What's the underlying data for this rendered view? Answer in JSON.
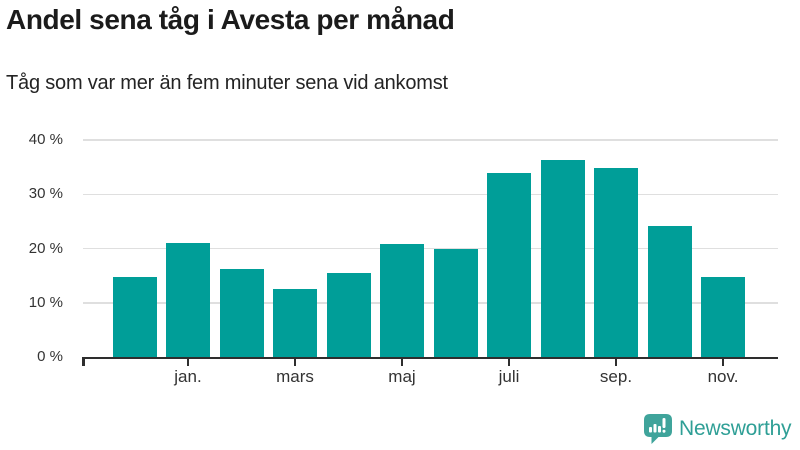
{
  "header": {
    "title": "Andel sena tåg i Avesta per månad",
    "subtitle": "Tåg som var mer än fem minuter sena vid ankomst"
  },
  "chart_data": {
    "type": "bar",
    "title": "Andel sena tåg i Avesta per månad",
    "subtitle": "Tåg som var mer än fem minuter sena vid ankomst",
    "unit": "%",
    "categories": [
      "",
      "jan.",
      "",
      "mars",
      "",
      "maj",
      "",
      "juli",
      "",
      "sep.",
      "",
      "nov."
    ],
    "values": [
      14.7,
      21.0,
      16.2,
      12.5,
      15.4,
      20.8,
      19.9,
      33.9,
      36.3,
      34.8,
      24.2,
      14.7
    ],
    "y_ticks": [
      {
        "value": 0,
        "label": "0 %"
      },
      {
        "value": 10,
        "label": "10 %"
      },
      {
        "value": 20,
        "label": "20 %"
      },
      {
        "value": 30,
        "label": "30 %"
      },
      {
        "value": 40,
        "label": "40 %"
      }
    ],
    "ylim": [
      0,
      40
    ],
    "grid": true,
    "legend": "none",
    "bar_color": "#009e98"
  },
  "footer": {
    "brand": "Newsworthy"
  },
  "colors": {
    "bar": "#009e98",
    "title_text": "#1b1b1b",
    "axis_text": "#333333",
    "axis_line": "#2e2e2e",
    "gridline": "#dfdfdf",
    "brand_teal": "#2f9f96",
    "logo_teal": "#3fa49b"
  }
}
